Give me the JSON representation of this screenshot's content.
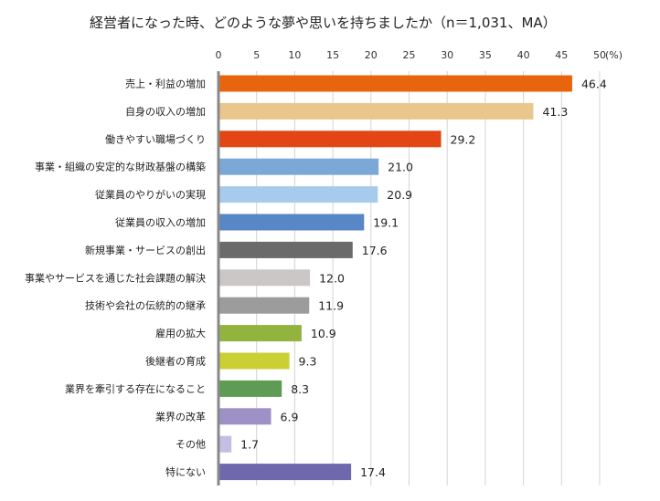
{
  "chart_data": {
    "type": "bar",
    "orientation": "horizontal",
    "title": "経営者になった時、どのような夢や思いを持ちましたか（n＝1,031、MA）",
    "unit_label": "(%)",
    "xlim": [
      0,
      50
    ],
    "ticks": [
      0,
      5,
      10,
      15,
      20,
      25,
      30,
      35,
      40,
      45,
      50
    ],
    "grid": true,
    "categories": [
      "売上・利益の増加",
      "自身の収入の増加",
      "働きやすい職場づくり",
      "事業・組織の安定的な財政基盤の構築",
      "従業員のやりがいの実現",
      "従業員の収入の増加",
      "新規事業・サービスの創出",
      "事業やサービスを通じた社会課題の解決",
      "技術や会社の伝統的の継承",
      "雇用の拡大",
      "後継者の育成",
      "業界を牽引する存在になること",
      "業界の改革",
      "その他",
      "特にない"
    ],
    "values": [
      46.4,
      41.3,
      29.2,
      21.0,
      20.9,
      19.1,
      17.6,
      12.0,
      11.9,
      10.9,
      9.3,
      8.3,
      6.9,
      1.7,
      17.4
    ],
    "value_labels": [
      "46.4",
      "41.3",
      "29.2",
      "21.0",
      "20.9",
      "19.1",
      "17.6",
      "12.0",
      "11.9",
      "10.9",
      "9.3",
      "8.3",
      "6.9",
      "1.7",
      "17.4"
    ],
    "colors": [
      "#E8650E",
      "#EAC68C",
      "#E44514",
      "#7CA8D8",
      "#A7CBEC",
      "#5787C4",
      "#6A6A6A",
      "#CBC7C7",
      "#9C9C9C",
      "#92B43F",
      "#CACF33",
      "#5E9C55",
      "#9D91C6",
      "#C3BEE2",
      "#6F68AC"
    ]
  }
}
